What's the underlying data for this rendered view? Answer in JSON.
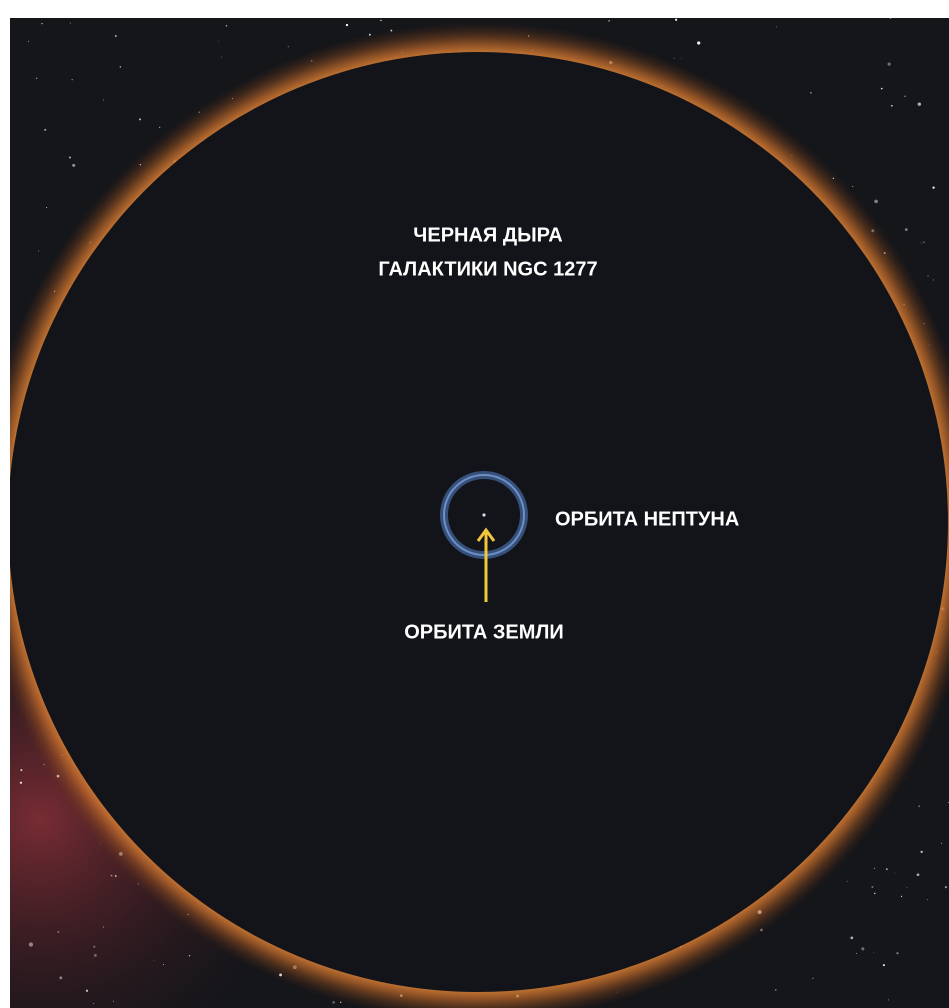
{
  "title": {
    "lines": [
      "ЧЕРНАЯ ДЫРА",
      "ГАЛАКТИКИ NGC 1277"
    ]
  },
  "labels": {
    "neptune_orbit": "ОРБИТА НЕПТУНА",
    "earth_orbit": "ОРБИТА ЗЕМЛИ"
  }
}
